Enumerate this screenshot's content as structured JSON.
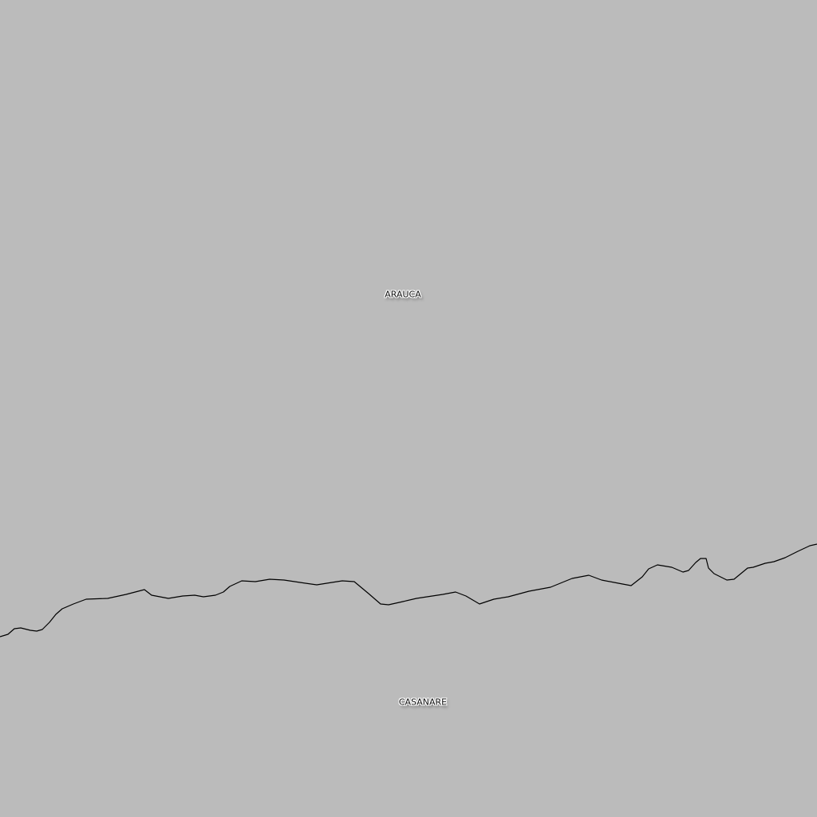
{
  "map": {
    "background_color": "#bbbbbb",
    "boundary_color": "#000000",
    "regions": [
      {
        "id": "arauca",
        "label": "ARAUCA"
      },
      {
        "id": "casanare",
        "label": "CASANARE"
      }
    ]
  }
}
